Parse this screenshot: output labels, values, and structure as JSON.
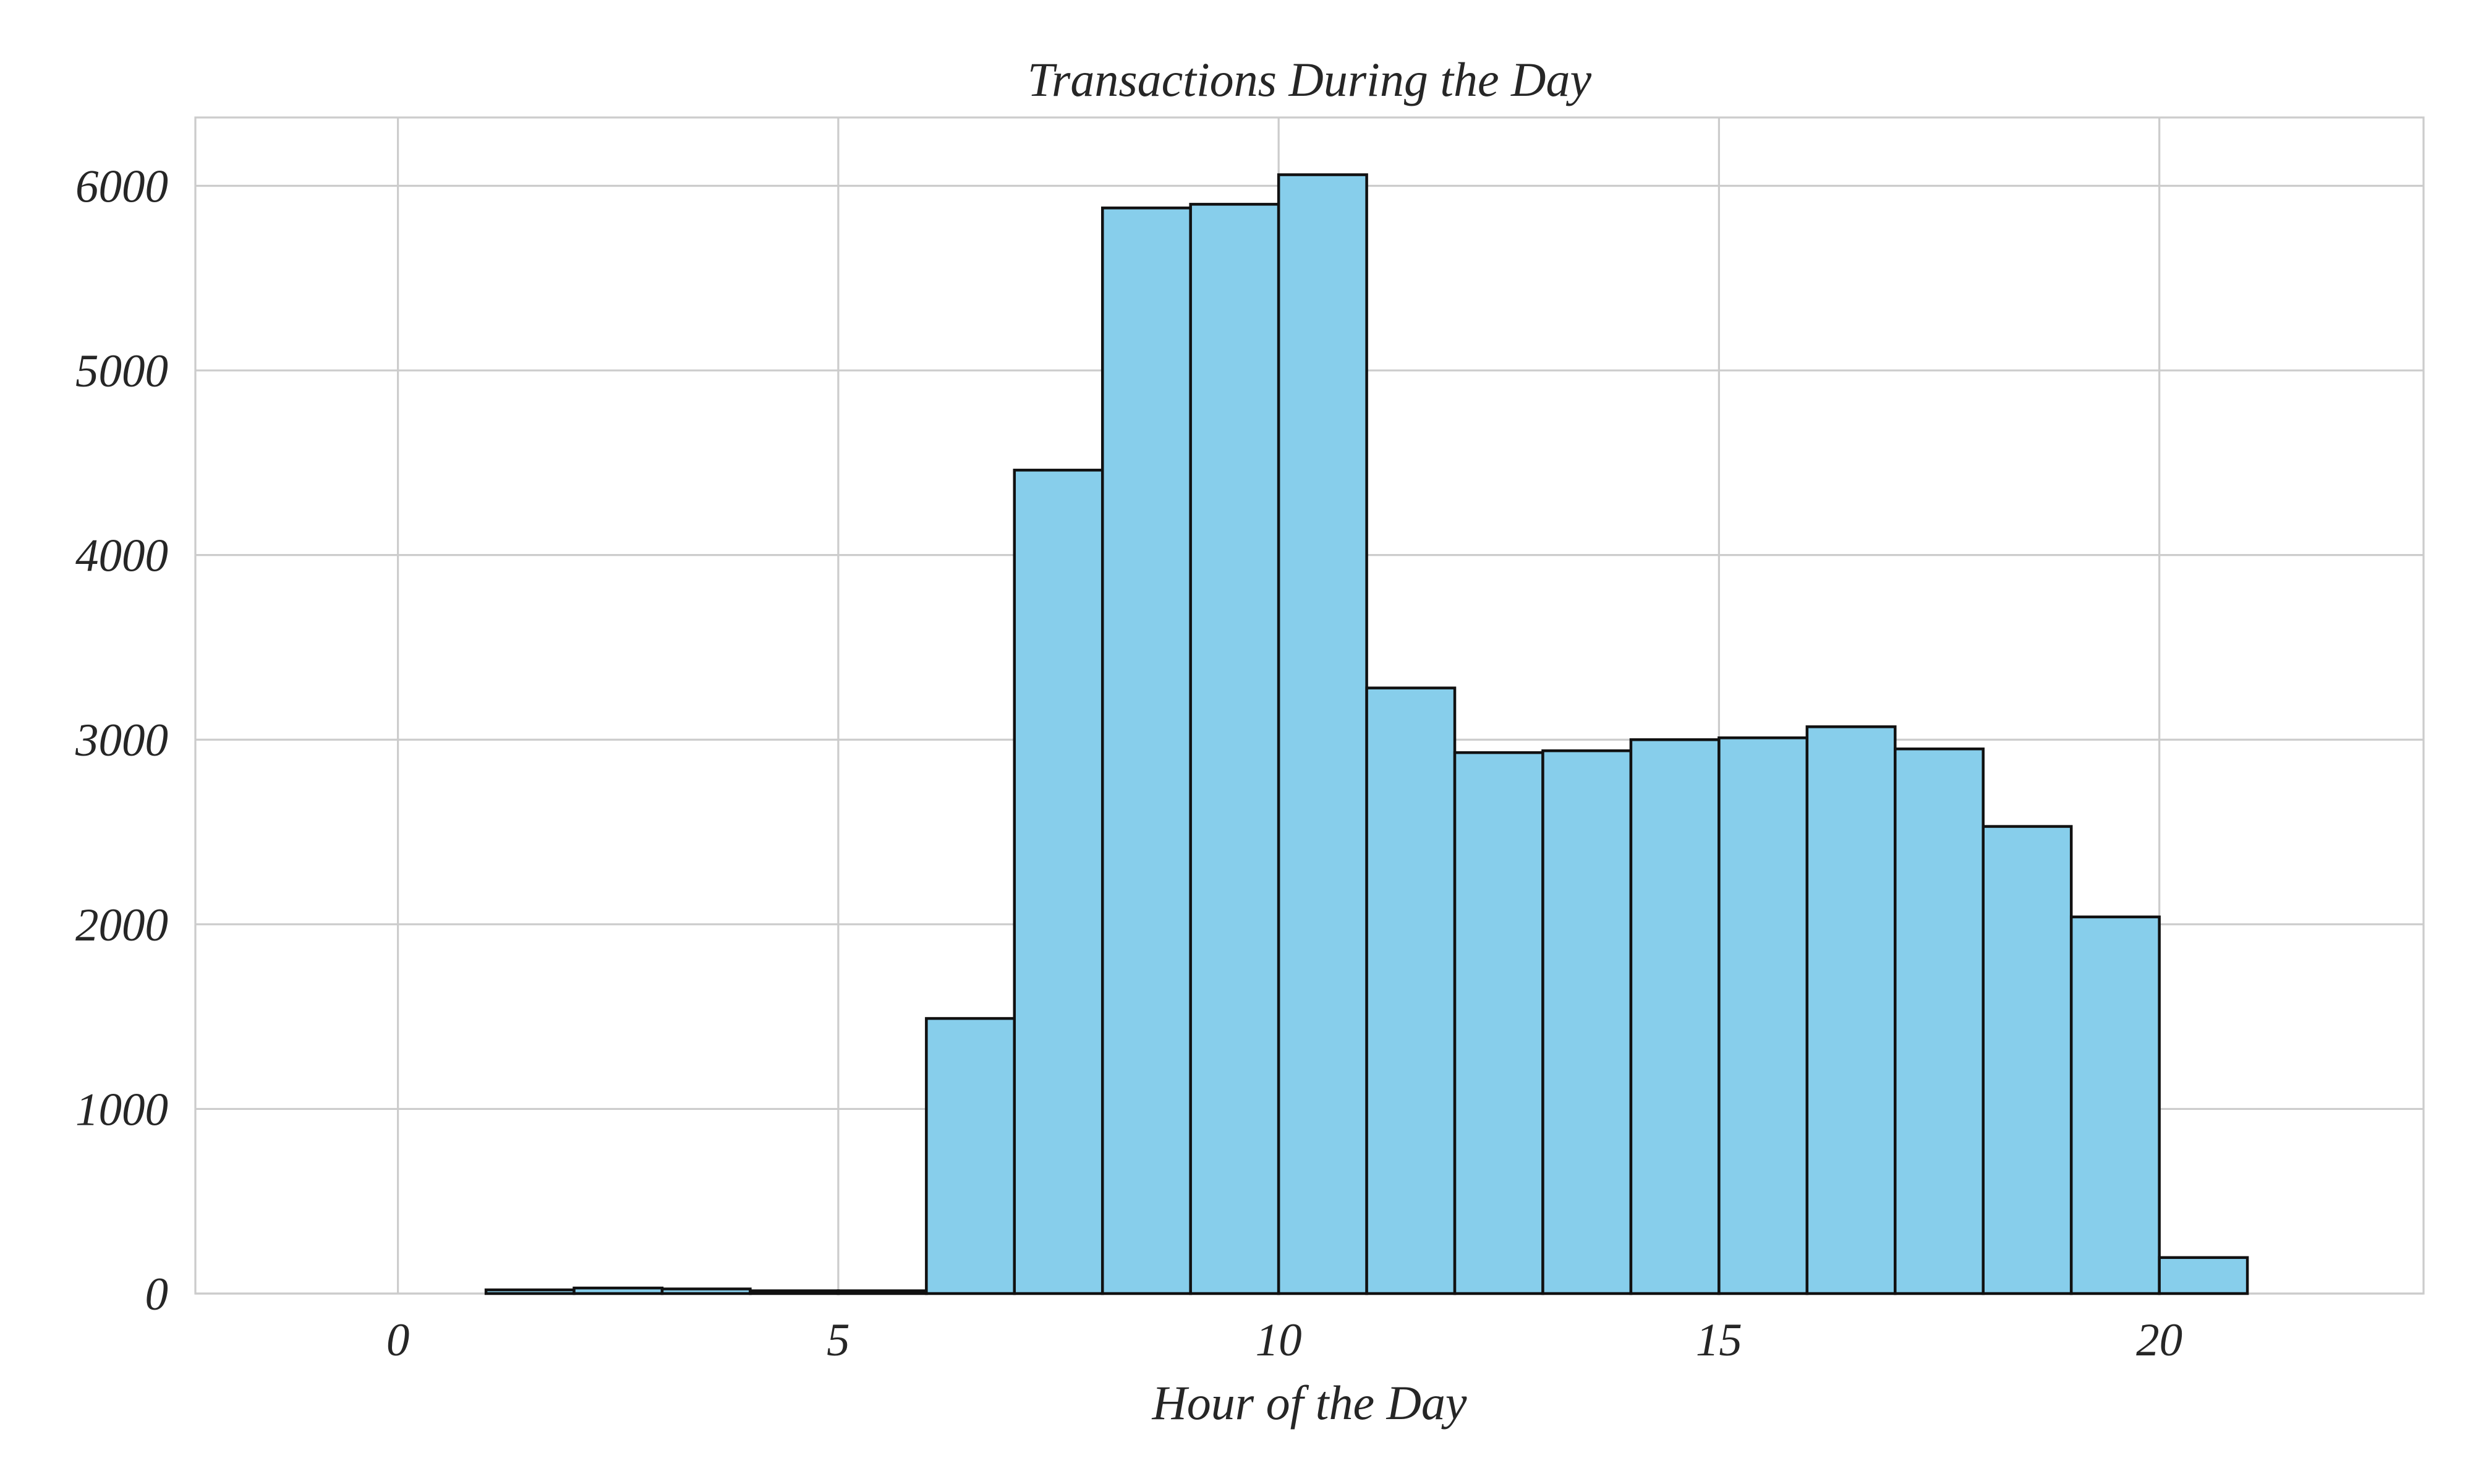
{
  "chart_data": {
    "type": "bar",
    "title": "Transactions During the Day",
    "xlabel": "Hour of the Day",
    "ylabel": "",
    "xlim": [
      -2.3,
      23.0
    ],
    "ylim": [
      0,
      6370
    ],
    "grid": true,
    "bar_color": "#87ceeb",
    "edge_color": "#111111",
    "grid_color": "#cccccc",
    "x_ticks": [
      0,
      5,
      10,
      15,
      20
    ],
    "y_ticks": [
      0,
      1000,
      2000,
      3000,
      4000,
      5000,
      6000
    ],
    "bins": [
      {
        "start": 0,
        "end": 1,
        "value": 0
      },
      {
        "start": 1,
        "end": 2,
        "value": 20
      },
      {
        "start": 2,
        "end": 3,
        "value": 30
      },
      {
        "start": 3,
        "end": 4,
        "value": 25
      },
      {
        "start": 4,
        "end": 5,
        "value": 15
      },
      {
        "start": 5,
        "end": 6,
        "value": 15
      },
      {
        "start": 6,
        "end": 7,
        "value": 1490
      },
      {
        "start": 7,
        "end": 8,
        "value": 4460
      },
      {
        "start": 8,
        "end": 9,
        "value": 5880
      },
      {
        "start": 9,
        "end": 10,
        "value": 5900
      },
      {
        "start": 10,
        "end": 11,
        "value": 6060
      },
      {
        "start": 11,
        "end": 12,
        "value": 3280
      },
      {
        "start": 12,
        "end": 13,
        "value": 2930
      },
      {
        "start": 13,
        "end": 14,
        "value": 2940
      },
      {
        "start": 14,
        "end": 15,
        "value": 3000
      },
      {
        "start": 15,
        "end": 16,
        "value": 3010
      },
      {
        "start": 16,
        "end": 17,
        "value": 3070
      },
      {
        "start": 17,
        "end": 18,
        "value": 2950
      },
      {
        "start": 18,
        "end": 19,
        "value": 2530
      },
      {
        "start": 19,
        "end": 20,
        "value": 2040
      },
      {
        "start": 20,
        "end": 21,
        "value": 195
      },
      {
        "start": 21,
        "end": 22,
        "value": 0
      },
      {
        "start": 22,
        "end": 23,
        "value": 0
      }
    ]
  }
}
